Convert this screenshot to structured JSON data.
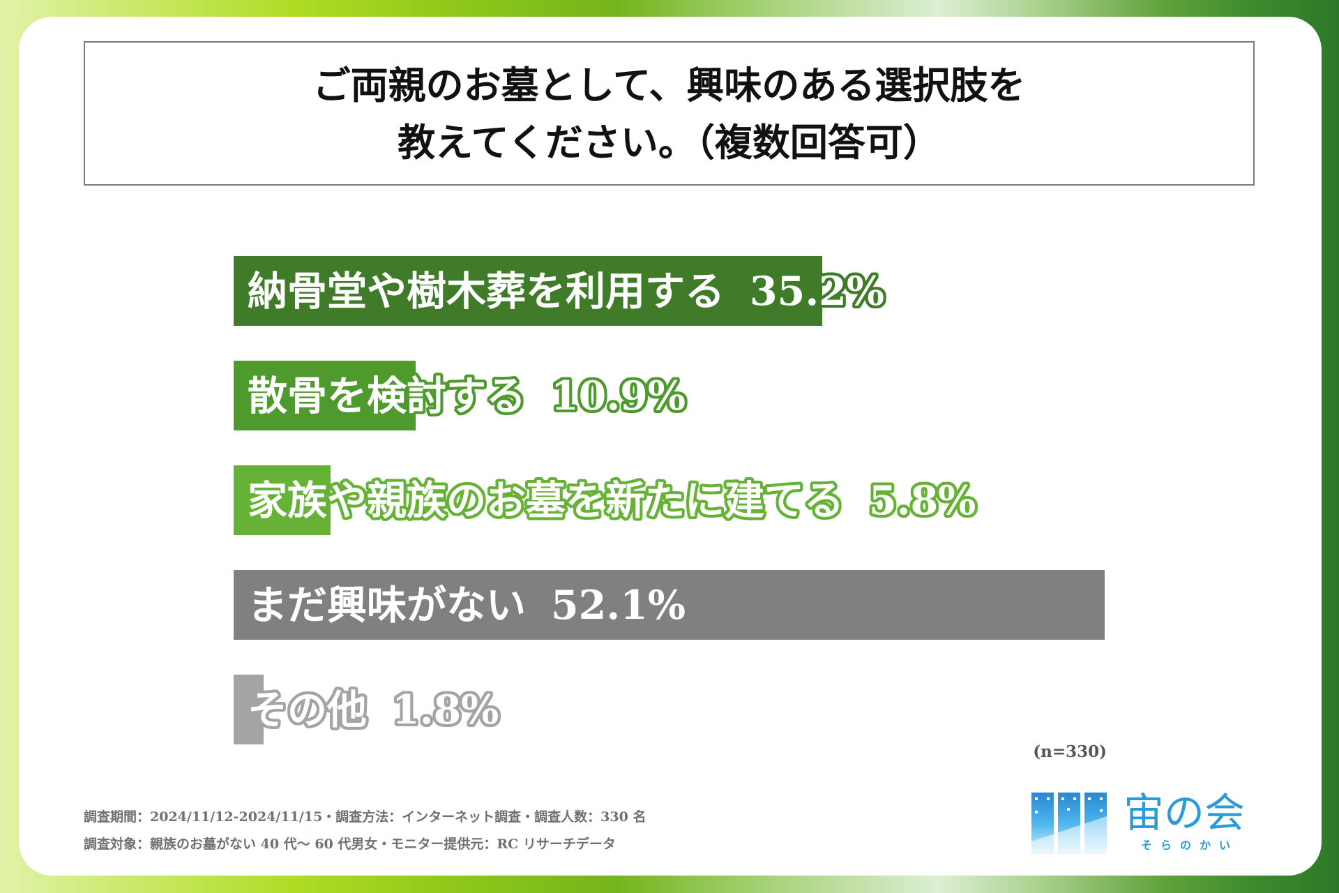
{
  "chart_data": {
    "type": "bar",
    "orientation": "horizontal",
    "title": "ご両親のお墓として、興味のある選択肢を\n教えてください。（複数回答可）",
    "categories": [
      "納骨堂や樹木葬を利用する",
      "散骨を検討する",
      "家族や親族のお墓を新たに建てる",
      "まだ興味がない",
      "その他"
    ],
    "values": [
      35.2,
      10.9,
      5.8,
      52.1,
      1.8
    ],
    "value_labels": [
      "35.2%",
      "10.9%",
      "5.8%",
      "52.1%",
      "1.8%"
    ],
    "colors": [
      "#3f7b28",
      "#4e9a2d",
      "#66b236",
      "#808080",
      "#a4a4a4"
    ],
    "sample_note": "(n=330)",
    "grid": false,
    "legend": "none"
  },
  "footer": {
    "survey_line1": "調査期間：2024/11/12-2024/11/15・調査方法：インターネット調査・調査人数：330 名",
    "survey_line2": "調査対象：親族のお墓がない 40 代～ 60 代男女・モニター提供元：RC リサーチデータ"
  },
  "logo": {
    "name": "宙の会",
    "reading": "そらのかい",
    "color": "#2b9bd8",
    "icon": "building-windows-icon"
  }
}
